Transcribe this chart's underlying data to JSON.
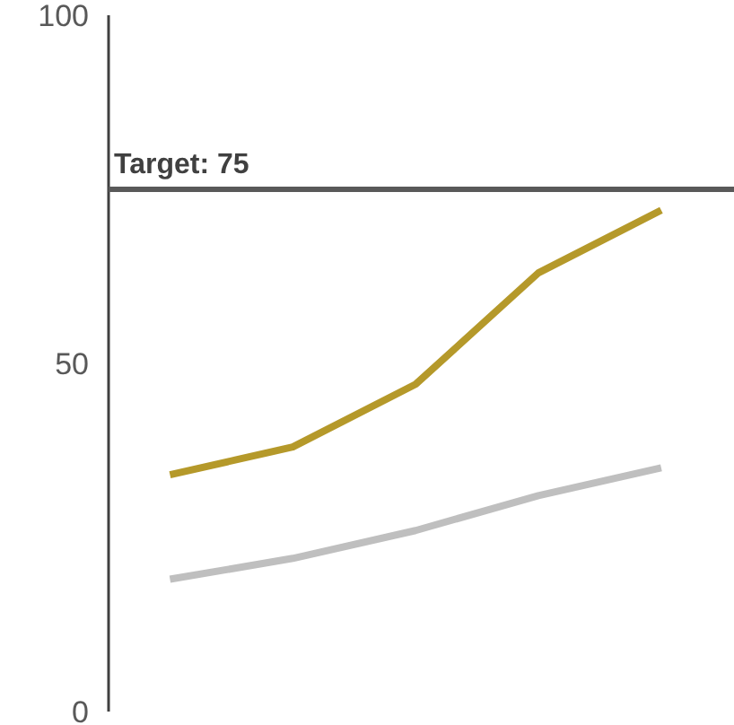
{
  "chart_data": {
    "type": "line",
    "categories": [
      null,
      null,
      null,
      null,
      null
    ],
    "series": [
      {
        "color": "#b5992a",
        "values": [
          34,
          38,
          47,
          63,
          72
        ]
      },
      {
        "color": "#bfbfbf",
        "values": [
          19,
          22,
          26,
          31,
          35
        ]
      }
    ],
    "ylim": [
      0,
      100
    ],
    "yticks": [
      0,
      50,
      100
    ],
    "grid": false,
    "ref_lines": [
      {
        "axis": "y",
        "value": 75,
        "label": "Target: 75",
        "color": "#595959"
      }
    ]
  }
}
